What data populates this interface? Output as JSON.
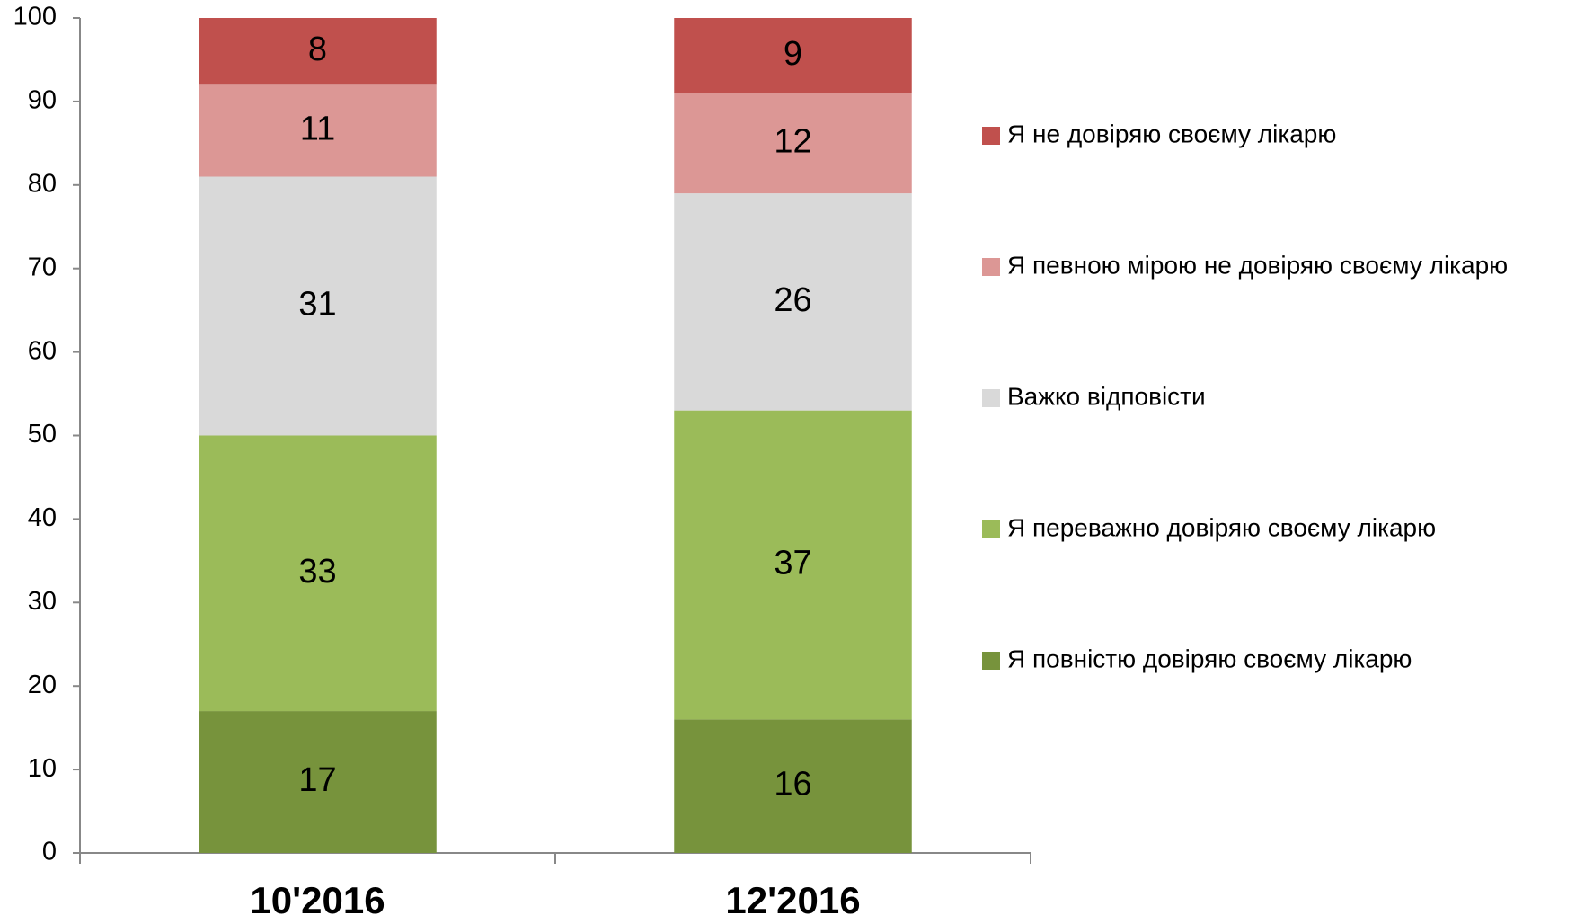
{
  "chart_data": {
    "type": "stacked_bar",
    "categories": [
      "10'2016",
      "12'2016"
    ],
    "series": [
      {
        "name": "Я повністю довіряю своєму лікарю",
        "color": "#77933c",
        "values": [
          17,
          16
        ]
      },
      {
        "name": "Я переважно довіряю своєму лікарю",
        "color": "#9bbb59",
        "values": [
          33,
          37
        ]
      },
      {
        "name": "Важко відповісти",
        "color": "#d9d9d9",
        "values": [
          31,
          26
        ]
      },
      {
        "name": "Я певною мірою не довіряю своєму лікарю",
        "color": "#dc9795",
        "values": [
          11,
          12
        ]
      },
      {
        "name": "Я не довіряю своєму лікарю",
        "color": "#c0504d",
        "values": [
          8,
          9
        ]
      }
    ],
    "ylim": [
      0,
      100
    ],
    "yticks": [
      0,
      10,
      20,
      30,
      40,
      50,
      60,
      70,
      80,
      90,
      100
    ],
    "legend": "right",
    "grid": false
  }
}
